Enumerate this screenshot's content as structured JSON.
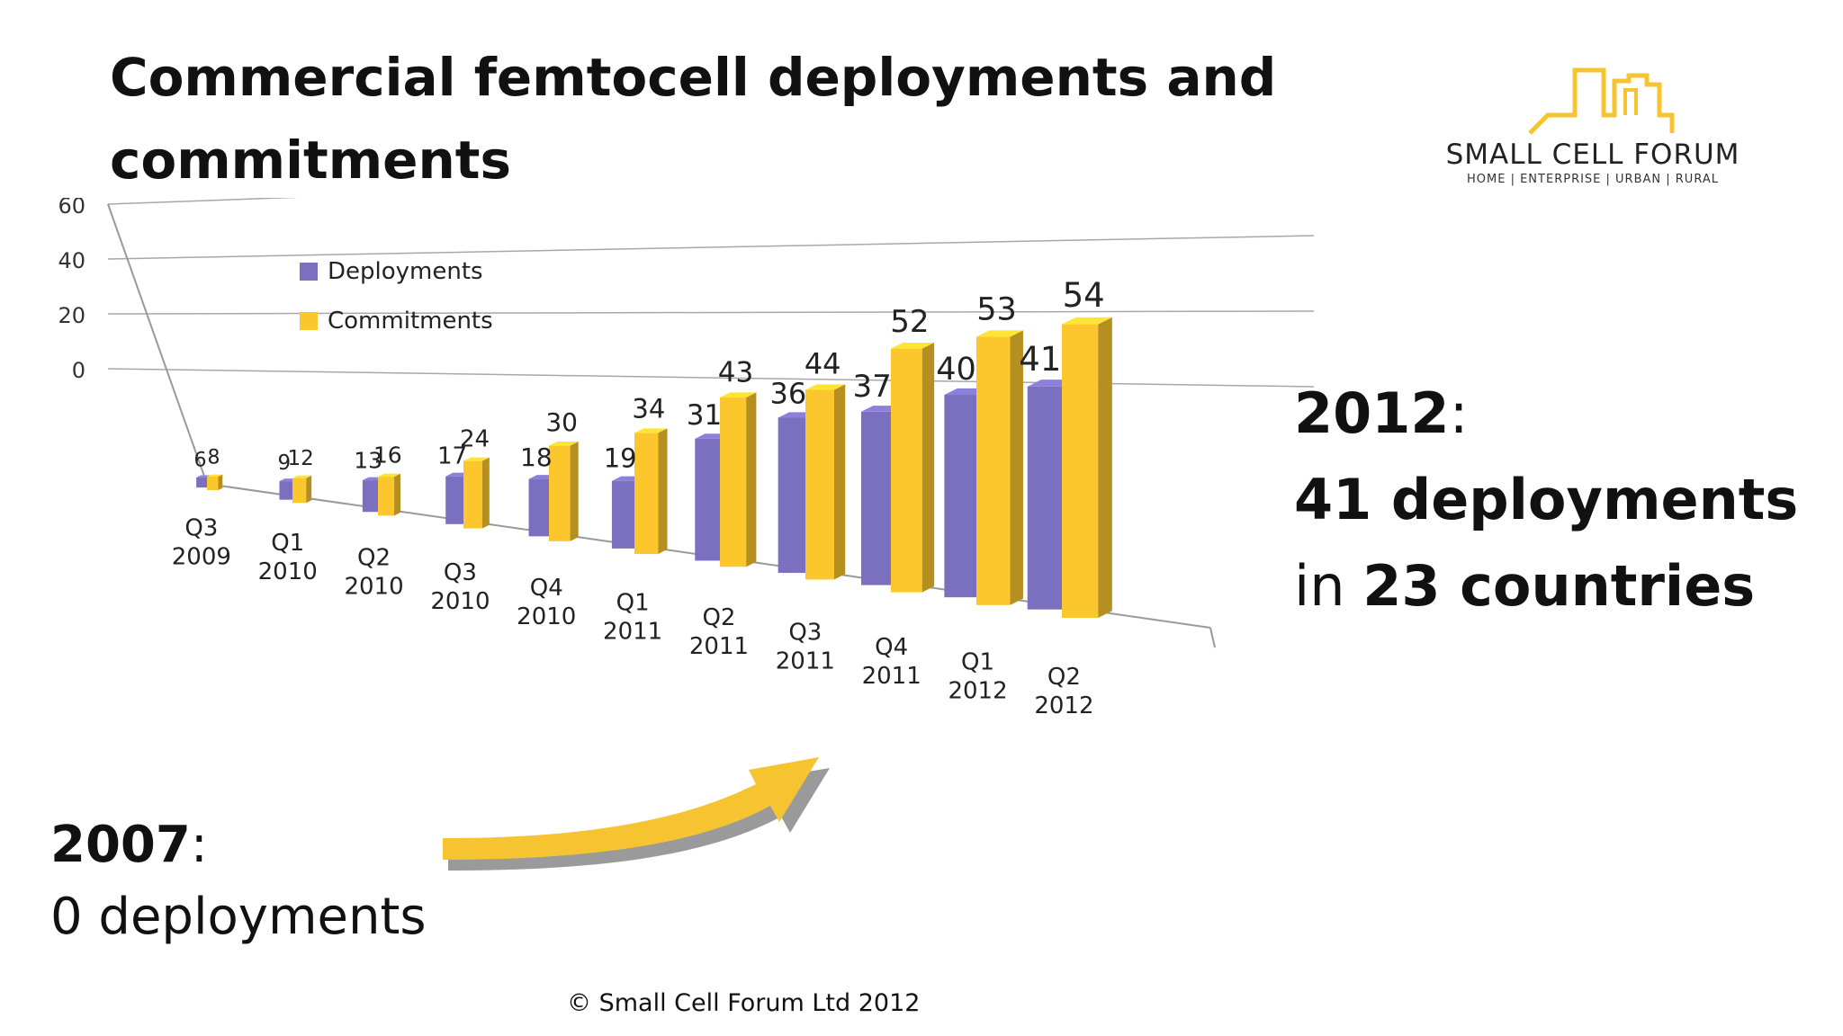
{
  "slide": {
    "title": "Commercial femtocell deployments and commitments",
    "copyright": "© Small Cell Forum Ltd 2012",
    "callout_2012": {
      "year": "2012",
      "line1_bold": "41 deployments",
      "line2_prefix": "in ",
      "line2_bold": "23 countries"
    },
    "callout_2007": {
      "year": "2007",
      "line1": "0 deployments"
    }
  },
  "logo": {
    "name": "SMALL CELL FORUM",
    "tagline": "HOME | ENTERPRISE | URBAN | RURAL"
  },
  "colors": {
    "deployments": "#7B6FC0",
    "commitments": "#FCC72C",
    "accent": "#F6C431",
    "text": "#111111"
  },
  "chart_data": {
    "type": "bar",
    "categories": [
      "Q3 2009",
      "Q1 2010",
      "Q2 2010",
      "Q3 2010",
      "Q4 2010",
      "Q1 2011",
      "Q2 2011",
      "Q3 2011",
      "Q4 2011",
      "Q1 2012",
      "Q2 2012"
    ],
    "series": [
      {
        "name": "Deployments",
        "values": [
          6,
          9,
          13,
          17,
          18,
          19,
          31,
          36,
          37,
          40,
          41
        ]
      },
      {
        "name": "Commitments",
        "values": [
          8,
          12,
          16,
          24,
          30,
          34,
          43,
          44,
          52,
          53,
          54
        ]
      }
    ],
    "yticks": [
      0,
      20,
      40,
      60
    ],
    "ylim": [
      0,
      60
    ],
    "legend": "top-left",
    "grid": true,
    "title": "",
    "xlabel": "",
    "ylabel": ""
  }
}
